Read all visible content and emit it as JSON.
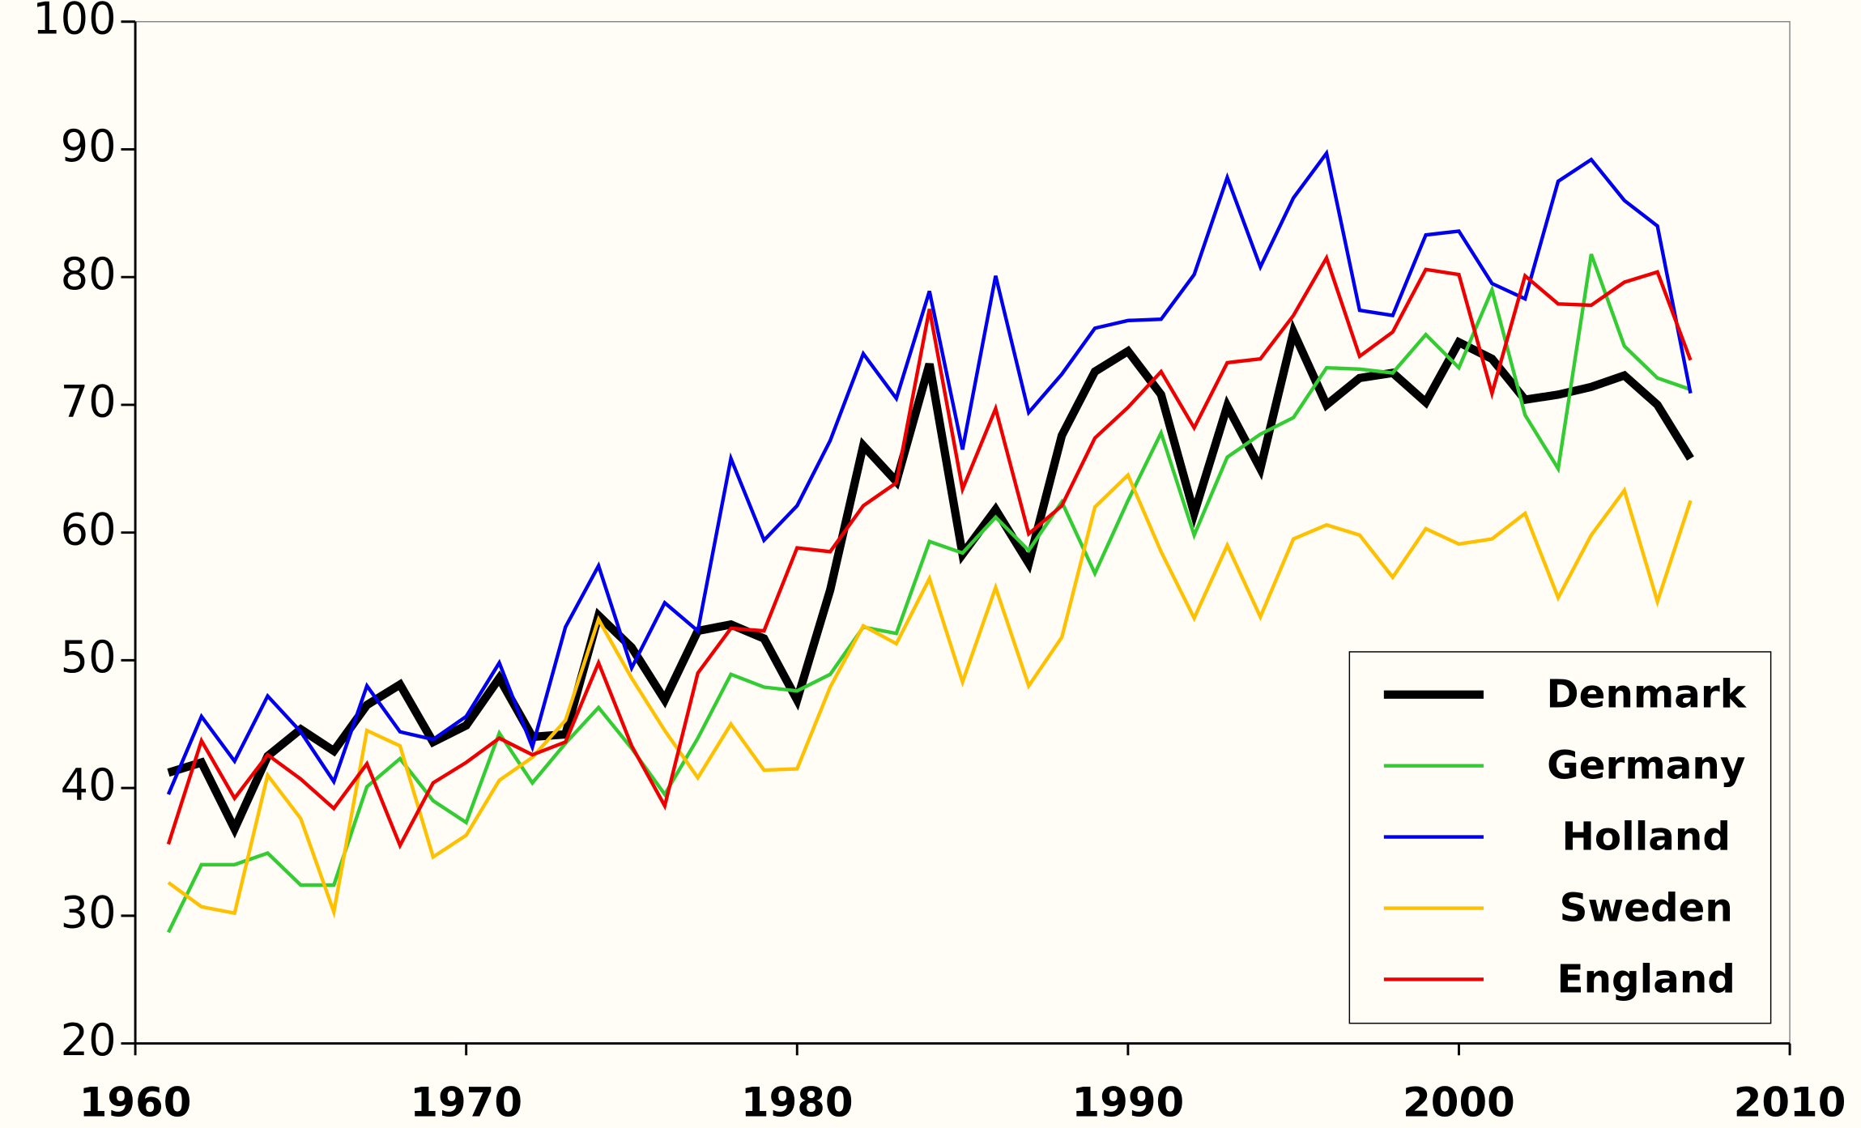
{
  "chart_data": {
    "type": "line",
    "x": [
      1961,
      1962,
      1963,
      1964,
      1965,
      1966,
      1967,
      1968,
      1969,
      1970,
      1971,
      1972,
      1973,
      1974,
      1975,
      1976,
      1977,
      1978,
      1979,
      1980,
      1981,
      1982,
      1983,
      1984,
      1985,
      1986,
      1987,
      1988,
      1989,
      1990,
      1991,
      1992,
      1993,
      1994,
      1995,
      1996,
      1997,
      1998,
      1999,
      2000,
      2001,
      2002,
      2003,
      2004,
      2005,
      2006,
      2007
    ],
    "series": [
      {
        "name": "Denmark",
        "color": "#000000",
        "width": 7,
        "values": [
          41.2,
          42,
          36.8,
          42.5,
          44.6,
          42.9,
          46.5,
          48.1,
          43.6,
          44.9,
          48.6,
          44.0,
          44.2,
          53.5,
          51.0,
          46.9,
          52.3,
          52.8,
          51.7,
          46.9,
          55.5,
          66.8,
          64.0,
          73.2,
          58.3,
          61.8,
          57.6,
          67.6,
          72.6,
          74.2,
          70.8,
          61.5,
          69.9,
          65.0,
          75.7,
          70.0,
          72.1,
          72.5,
          70.2,
          74.9,
          73.6,
          70.4,
          70.8,
          71.4,
          72.3,
          70.0,
          65.8
        ]
      },
      {
        "name": "Germany",
        "color": "#33cc33",
        "width": 3,
        "values": [
          28.7,
          34.0,
          34.0,
          34.9,
          32.4,
          32.4,
          40.1,
          42.3,
          39.0,
          37.3,
          44.3,
          40.4,
          43.5,
          46.3,
          43.1,
          39.5,
          43.9,
          48.9,
          47.9,
          47.6,
          48.9,
          52.6,
          52.1,
          59.3,
          58.4,
          61.2,
          58.6,
          62.4,
          56.8,
          62.5,
          67.8,
          59.8,
          65.9,
          67.7,
          69.0,
          72.9,
          72.8,
          72.5,
          75.5,
          72.9,
          79.0,
          69.2,
          65.0,
          81.8,
          74.6,
          72.1,
          71.2
        ]
      },
      {
        "name": "Holland",
        "color": "#0000ee",
        "width": 3,
        "values": [
          39.5,
          45.6,
          42.1,
          47.2,
          44.4,
          40.5,
          48.0,
          44.4,
          43.8,
          45.6,
          49.8,
          43.2,
          52.6,
          57.4,
          49.4,
          54.5,
          52.3,
          65.8,
          59.4,
          62.1,
          67.2,
          74.0,
          70.5,
          78.9,
          66.5,
          80.1,
          69.4,
          72.4,
          76.0,
          76.6,
          76.7,
          80.2,
          87.8,
          80.8,
          86.2,
          89.7,
          77.4,
          77.0,
          83.3,
          83.6,
          79.5,
          78.3,
          87.5,
          89.2,
          86.0,
          84.0,
          70.9
        ]
      },
      {
        "name": "Sweden",
        "color": "#ffc000",
        "width": 3,
        "values": [
          32.6,
          30.7,
          30.2,
          41.0,
          37.6,
          30.3,
          44.5,
          43.3,
          34.6,
          36.3,
          40.6,
          42.4,
          45.3,
          53.2,
          48.6,
          44.5,
          40.8,
          45.0,
          41.4,
          41.5,
          47.9,
          52.7,
          51.3,
          56.4,
          48.3,
          55.7,
          48.0,
          51.8,
          62.0,
          64.5,
          58.5,
          53.3,
          59.0,
          53.4,
          59.5,
          60.6,
          59.8,
          56.5,
          60.3,
          59.1,
          59.5,
          61.5,
          54.9,
          59.8,
          63.3,
          54.6,
          62.5
        ]
      },
      {
        "name": "England",
        "color": "#ee0000",
        "width": 3,
        "values": [
          35.6,
          43.7,
          39.2,
          42.6,
          40.7,
          38.4,
          41.9,
          35.5,
          40.4,
          42.0,
          43.9,
          42.6,
          43.6,
          49.8,
          43.3,
          38.6,
          49.0,
          52.5,
          52.3,
          58.8,
          58.5,
          62.1,
          63.9,
          77.5,
          63.4,
          69.7,
          59.9,
          62.1,
          67.4,
          69.8,
          72.6,
          68.2,
          73.3,
          73.6,
          77.0,
          81.5,
          73.8,
          75.7,
          80.6,
          80.2,
          70.9,
          80.1,
          77.9,
          77.8,
          79.6,
          80.4,
          73.5
        ]
      }
    ],
    "xlim": [
      1960,
      2010
    ],
    "xticks": [
      1960,
      1970,
      1980,
      1990,
      2000,
      2010
    ],
    "ylim": [
      20,
      100
    ],
    "yticks": [
      20,
      30,
      40,
      50,
      60,
      70,
      80,
      90,
      100
    ],
    "grid": false,
    "legend": "lower right"
  }
}
